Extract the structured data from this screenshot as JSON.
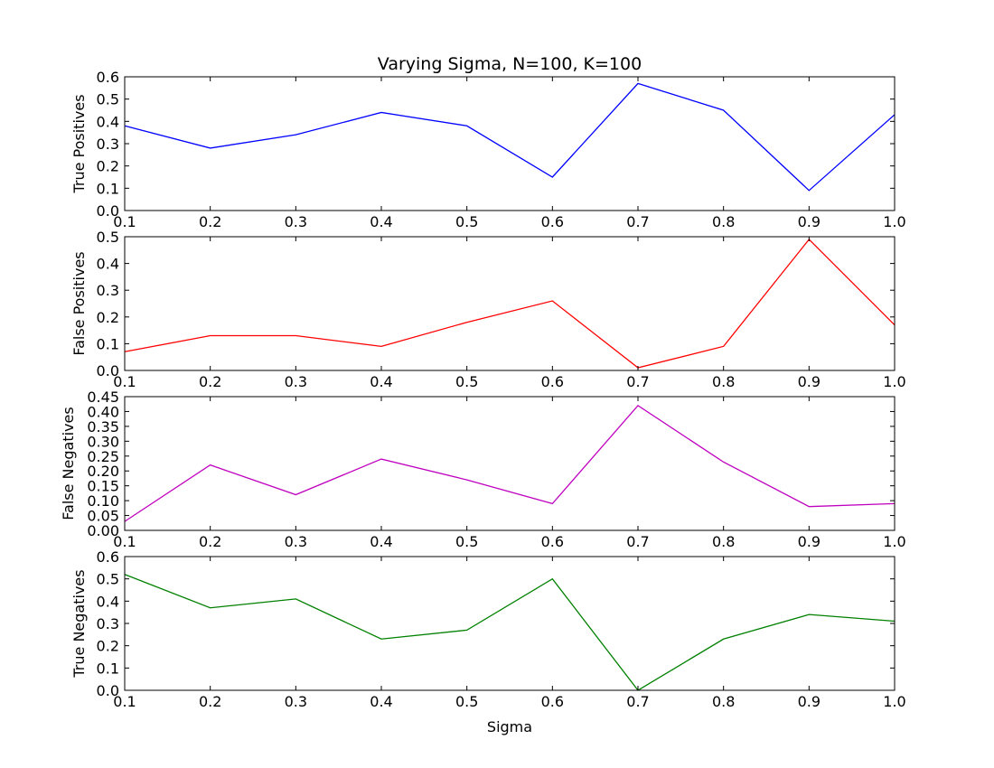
{
  "figure": {
    "title": "Varying Sigma, N=100, K=100",
    "xlabel": "Sigma"
  },
  "chart_data": [
    {
      "type": "line",
      "title": "Varying Sigma, N=100, K=100",
      "xlabel": "",
      "ylabel": "True Positives",
      "x": [
        0.1,
        0.2,
        0.3,
        0.4,
        0.5,
        0.6,
        0.7,
        0.8,
        0.9,
        1.0
      ],
      "xlim": [
        0.1,
        1.0
      ],
      "xticks": [
        "0.1",
        "0.2",
        "0.3",
        "0.4",
        "0.5",
        "0.6",
        "0.7",
        "0.8",
        "0.9",
        "1.0"
      ],
      "ylim": [
        0.0,
        0.6
      ],
      "yticks": [
        "0.0",
        "0.1",
        "0.2",
        "0.3",
        "0.4",
        "0.5",
        "0.6"
      ],
      "grid": false,
      "series": [
        {
          "color": "#0000ff",
          "values": [
            0.38,
            0.28,
            0.34,
            0.44,
            0.38,
            0.15,
            0.57,
            0.45,
            0.09,
            0.43
          ]
        }
      ]
    },
    {
      "type": "line",
      "xlabel": "",
      "ylabel": "False Positives",
      "x": [
        0.1,
        0.2,
        0.3,
        0.4,
        0.5,
        0.6,
        0.7,
        0.8,
        0.9,
        1.0
      ],
      "xlim": [
        0.1,
        1.0
      ],
      "xticks": [
        "0.1",
        "0.2",
        "0.3",
        "0.4",
        "0.5",
        "0.6",
        "0.7",
        "0.8",
        "0.9",
        "1.0"
      ],
      "ylim": [
        0.0,
        0.5
      ],
      "yticks": [
        "0.0",
        "0.1",
        "0.2",
        "0.3",
        "0.4",
        "0.5"
      ],
      "grid": false,
      "series": [
        {
          "color": "#ff0000",
          "values": [
            0.07,
            0.13,
            0.13,
            0.09,
            0.18,
            0.26,
            0.01,
            0.09,
            0.49,
            0.17
          ]
        }
      ]
    },
    {
      "type": "line",
      "xlabel": "",
      "ylabel": "False Negatives",
      "x": [
        0.1,
        0.2,
        0.3,
        0.4,
        0.5,
        0.6,
        0.7,
        0.8,
        0.9,
        1.0
      ],
      "xlim": [
        0.1,
        1.0
      ],
      "xticks": [
        "0.1",
        "0.2",
        "0.3",
        "0.4",
        "0.5",
        "0.6",
        "0.7",
        "0.8",
        "0.9",
        "1.0"
      ],
      "ylim": [
        0.0,
        0.45
      ],
      "yticks": [
        "0.00",
        "0.05",
        "0.10",
        "0.15",
        "0.20",
        "0.25",
        "0.30",
        "0.35",
        "0.40",
        "0.45"
      ],
      "grid": false,
      "series": [
        {
          "color": "#bf00bf",
          "values": [
            0.03,
            0.22,
            0.12,
            0.24,
            0.17,
            0.09,
            0.42,
            0.23,
            0.08,
            0.09
          ]
        }
      ]
    },
    {
      "type": "line",
      "xlabel": "Sigma",
      "ylabel": "True Negatives",
      "x": [
        0.1,
        0.2,
        0.3,
        0.4,
        0.5,
        0.6,
        0.7,
        0.8,
        0.9,
        1.0
      ],
      "xlim": [
        0.1,
        1.0
      ],
      "xticks": [
        "0.1",
        "0.2",
        "0.3",
        "0.4",
        "0.5",
        "0.6",
        "0.7",
        "0.8",
        "0.9",
        "1.0"
      ],
      "ylim": [
        0.0,
        0.6
      ],
      "yticks": [
        "0.0",
        "0.1",
        "0.2",
        "0.3",
        "0.4",
        "0.5",
        "0.6"
      ],
      "grid": false,
      "series": [
        {
          "color": "#008000",
          "values": [
            0.52,
            0.37,
            0.41,
            0.23,
            0.27,
            0.5,
            0.0,
            0.23,
            0.34,
            0.31
          ]
        }
      ]
    }
  ]
}
